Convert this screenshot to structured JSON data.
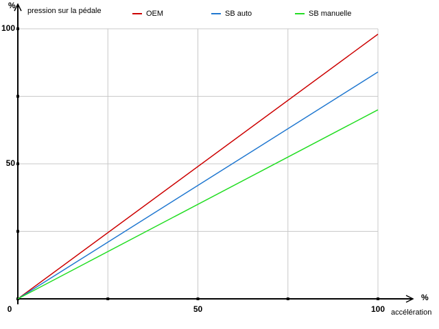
{
  "chart_data": {
    "type": "line",
    "y_label": "pression sur la pédale",
    "x_label": "accélération",
    "y_unit": "%",
    "x_unit": "%",
    "x": [
      0,
      100
    ],
    "series": [
      {
        "name": "OEM",
        "color": "#cc0000",
        "values": [
          0,
          98
        ]
      },
      {
        "name": "SB auto",
        "color": "#1f77d0",
        "values": [
          0,
          84
        ]
      },
      {
        "name": "SB manuelle",
        "color": "#22dd22",
        "values": [
          0,
          70
        ]
      }
    ],
    "xlim": [
      0,
      100
    ],
    "ylim": [
      0,
      100
    ],
    "xticks": [
      0,
      50,
      100
    ],
    "xminor_ticks": [
      25,
      75
    ],
    "yticks": [
      50,
      100
    ],
    "yminor_ticks": [
      25,
      75
    ],
    "grid": true
  }
}
